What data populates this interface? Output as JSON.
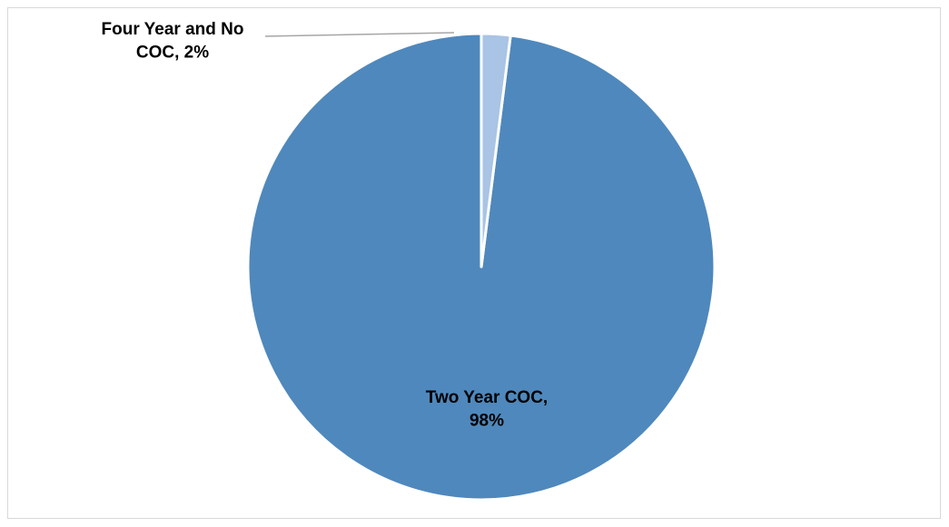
{
  "chart_data": {
    "type": "pie",
    "title": "",
    "slices": [
      {
        "label": "Two Year COC",
        "value": 98,
        "display": "98%",
        "color": "#4f88bc"
      },
      {
        "label": "Four Year and No COC",
        "value": 2,
        "display": "2%",
        "color": "#a9c4e4"
      }
    ],
    "start_angle": "12 o'clock",
    "direction": "counter-clockwise",
    "legend": "none",
    "data_labels": "category name and percentage"
  }
}
